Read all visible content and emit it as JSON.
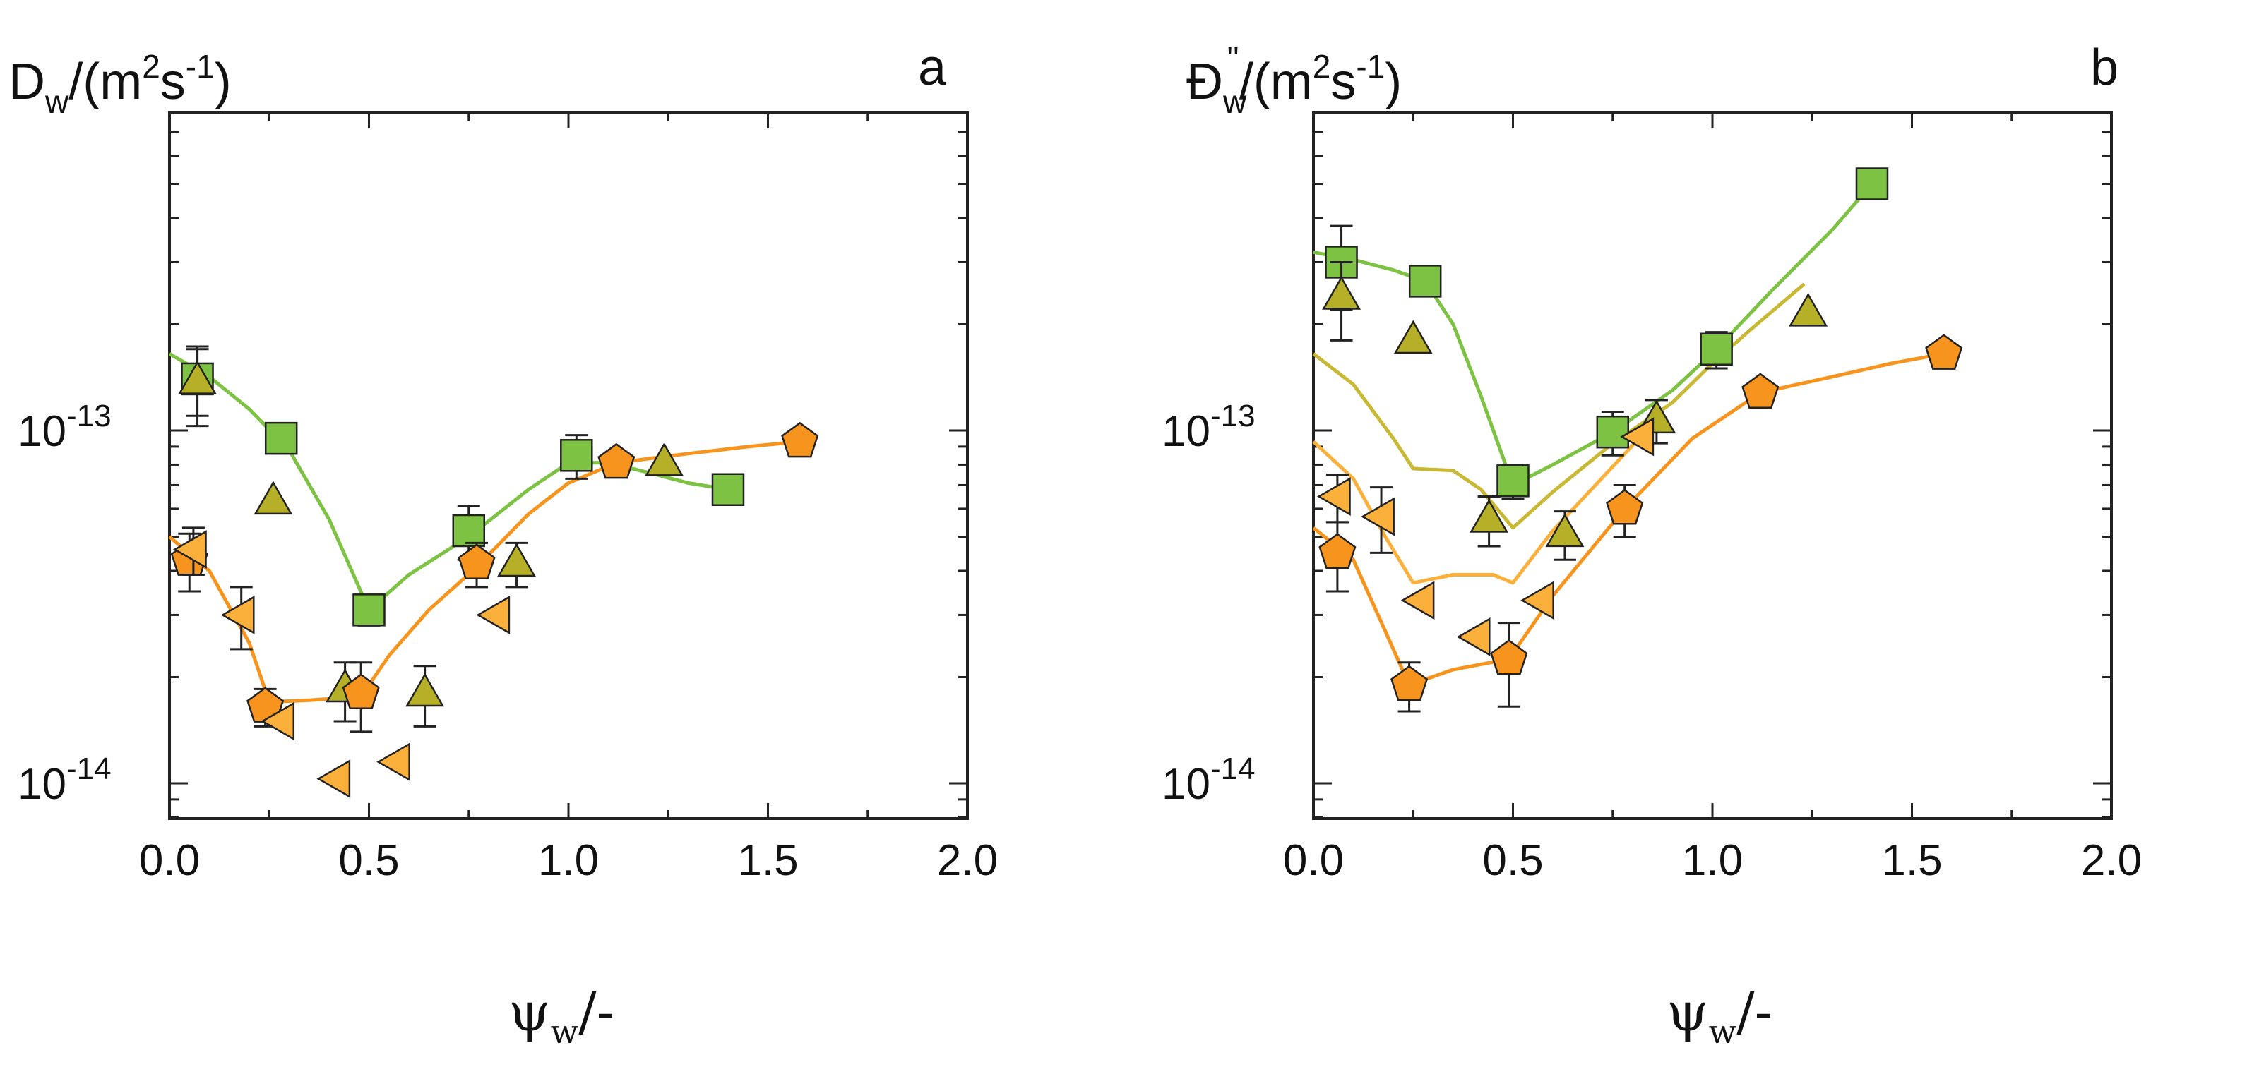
{
  "chart_data": [
    {
      "type": "scatter",
      "panel": "a",
      "title_main": "D",
      "title_sub": "w",
      "title_mid": "/(m",
      "title_sup1": "2",
      "title_mid2": "s",
      "title_sup2": "-1",
      "title_end": ")",
      "panel_label": "a",
      "xlabel_main": "ψ",
      "xlabel_sub": "w",
      "xlabel_end": "/-",
      "xlim": [
        0,
        2
      ],
      "ylim_log": [
        -14.1,
        -12.1
      ],
      "yscale": "log",
      "x_ticks": [
        "0.0",
        "0.5",
        "1.0",
        "1.5",
        "2.0"
      ],
      "y_ticks": [
        {
          "base": "10",
          "exp": "-13",
          "value": -13
        },
        {
          "base": "10",
          "exp": "-14",
          "value": -14
        }
      ],
      "series": [
        {
          "name": "square",
          "marker": "square",
          "color": "#7dc242",
          "x": [
            0.07,
            0.28,
            0.5,
            0.75,
            1.02,
            1.4
          ],
          "y": [
            1.4e-13,
            9.5e-14,
            3.1e-14,
            5.2e-14,
            8.5e-14,
            6.8e-14
          ],
          "err": [
            3e-14,
            0,
            3e-15,
            9e-15,
            1.2e-14,
            0
          ]
        },
        {
          "name": "triangle-up",
          "marker": "triangle-up",
          "color": "#b5b027",
          "x": [
            0.07,
            0.26,
            0.44,
            0.64,
            0.87,
            1.24
          ],
          "y": [
            1.38e-13,
            6.3e-14,
            1.85e-14,
            1.8e-14,
            4.2e-14,
            8.1e-14
          ],
          "err": [
            3.5e-14,
            0,
            3.5e-15,
            3.5e-15,
            6e-15,
            0
          ]
        },
        {
          "name": "pentagon",
          "marker": "pentagon",
          "color": "#f7941d",
          "x": [
            0.05,
            0.24,
            0.48,
            0.77,
            1.12,
            1.58
          ],
          "y": [
            4.3e-14,
            1.65e-14,
            1.8e-14,
            4.2e-14,
            8.1e-14,
            9.3e-14
          ],
          "err": [
            8e-15,
            2e-15,
            4e-15,
            6e-15,
            0,
            0
          ]
        },
        {
          "name": "triangle-left",
          "marker": "triangle-left",
          "color": "#fbb03b",
          "x": [
            0.06,
            0.18,
            0.28,
            0.42,
            0.57,
            0.82
          ],
          "y": [
            4.6e-14,
            3e-14,
            1.5e-14,
            1.03e-14,
            1.15e-14,
            3e-14
          ],
          "err": [
            7e-15,
            6e-15,
            0,
            0,
            0,
            0
          ]
        }
      ],
      "lines": [
        {
          "name": "green-fit",
          "color": "#7dc242",
          "x": [
            0.0,
            0.1,
            0.2,
            0.3,
            0.4,
            0.5,
            0.6,
            0.75,
            0.9,
            1.0,
            1.1,
            1.2,
            1.3,
            1.4
          ],
          "y": [
            1.65e-13,
            1.42e-13,
            1.15e-13,
            8.8e-14,
            5.6e-14,
            3.1e-14,
            3.9e-14,
            5e-14,
            6.8e-14,
            8.1e-14,
            8.1e-14,
            7.6e-14,
            7.1e-14,
            6.8e-14
          ]
        },
        {
          "name": "orange-fit",
          "color": "#f7941d",
          "x": [
            0.0,
            0.1,
            0.2,
            0.25,
            0.35,
            0.48,
            0.55,
            0.65,
            0.77,
            0.9,
            1.0,
            1.12,
            1.3,
            1.45,
            1.58
          ],
          "y": [
            5e-14,
            4e-14,
            2.5e-14,
            1.7e-14,
            1.72e-14,
            1.76e-14,
            2.3e-14,
            3.1e-14,
            4.1e-14,
            5.8e-14,
            7.1e-14,
            8.1e-14,
            8.6e-14,
            9e-14,
            9.3e-14
          ]
        }
      ]
    },
    {
      "type": "scatter",
      "panel": "b",
      "title_main": "Đ",
      "title_sub": "w",
      "title_sup0": "''",
      "title_mid": "/(m",
      "title_sup1": "2",
      "title_mid2": "s",
      "title_sup2": "-1",
      "title_end": ")",
      "panel_label": "b",
      "xlabel_main": "ψ",
      "xlabel_sub": "w",
      "xlabel_end": "/-",
      "xlim": [
        0,
        2
      ],
      "ylim_log": [
        -14.1,
        -12.1
      ],
      "yscale": "log",
      "x_ticks": [
        "0.0",
        "0.5",
        "1.0",
        "1.5",
        "2.0"
      ],
      "y_ticks": [
        {
          "base": "10",
          "exp": "-13",
          "value": -13
        },
        {
          "base": "10",
          "exp": "-14",
          "value": -14
        }
      ],
      "series": [
        {
          "name": "square",
          "marker": "square",
          "color": "#7dc242",
          "x": [
            0.07,
            0.28,
            0.5,
            0.75,
            1.01,
            1.4
          ],
          "y": [
            3e-13,
            2.65e-13,
            7.2e-14,
            9.9e-14,
            1.7e-13,
            5e-13
          ],
          "err": [
            8e-14,
            0,
            8e-15,
            1.4e-14,
            2e-14,
            0
          ]
        },
        {
          "name": "triangle-up",
          "marker": "triangle-up",
          "color": "#b5b027",
          "x": [
            0.07,
            0.25,
            0.44,
            0.63,
            0.86,
            1.24
          ],
          "y": [
            2.4e-13,
            1.8e-13,
            5.6e-14,
            5.1e-14,
            1.07e-13,
            2.15e-13
          ],
          "err": [
            6e-14,
            0,
            9e-15,
            8e-15,
            1.5e-14,
            0
          ]
        },
        {
          "name": "pentagon",
          "marker": "pentagon",
          "color": "#f7941d",
          "x": [
            0.06,
            0.24,
            0.49,
            0.78,
            1.12,
            1.58
          ],
          "y": [
            4.5e-14,
            1.9e-14,
            2.25e-14,
            6e-14,
            1.28e-13,
            1.65e-13
          ],
          "err": [
            1e-14,
            3e-15,
            6e-15,
            1e-14,
            0,
            0
          ]
        },
        {
          "name": "triangle-left",
          "marker": "triangle-left",
          "color": "#fbb03b",
          "x": [
            0.06,
            0.17,
            0.27,
            0.41,
            0.57,
            0.82
          ],
          "y": [
            6.5e-14,
            5.7e-14,
            3.3e-14,
            2.6e-14,
            3.3e-14,
            9.6e-14
          ],
          "err": [
            1e-14,
            1.2e-14,
            0,
            0,
            0,
            0
          ]
        }
      ],
      "lines": [
        {
          "name": "green-fit",
          "color": "#7dc242",
          "x": [
            0.0,
            0.1,
            0.2,
            0.28,
            0.35,
            0.42,
            0.5,
            0.6,
            0.75,
            0.9,
            1.01,
            1.15,
            1.3,
            1.4
          ],
          "y": [
            3.2e-13,
            3.05e-13,
            2.85e-13,
            2.65e-13,
            2e-13,
            1.25e-13,
            7e-14,
            8e-14,
            9.9e-14,
            1.3e-13,
            1.7e-13,
            2.5e-13,
            3.7e-13,
            5e-13
          ]
        },
        {
          "name": "olive-fit",
          "color": "#c9b833",
          "x": [
            0.0,
            0.1,
            0.2,
            0.25,
            0.35,
            0.42,
            0.5,
            0.6,
            0.75,
            0.9,
            1.0,
            1.1,
            1.23
          ],
          "y": [
            1.65e-13,
            1.35e-13,
            9.5e-14,
            7.8e-14,
            7.7e-14,
            6.8e-14,
            5.3e-14,
            6.7e-14,
            9.2e-14,
            1.2e-13,
            1.55e-13,
            1.95e-13,
            2.6e-13
          ]
        },
        {
          "name": "light-orange-fit",
          "color": "#fbb03b",
          "x": [
            0.0,
            0.1,
            0.18,
            0.25,
            0.35,
            0.45,
            0.5,
            0.6,
            0.75,
            0.82
          ],
          "y": [
            9.3e-14,
            7.3e-14,
            5e-14,
            3.7e-14,
            3.9e-14,
            3.9e-14,
            3.7e-14,
            5.2e-14,
            7.9e-14,
            9.6e-14
          ]
        },
        {
          "name": "orange-fit",
          "color": "#f7941d",
          "x": [
            0.0,
            0.1,
            0.18,
            0.24,
            0.35,
            0.49,
            0.6,
            0.78,
            0.95,
            1.12,
            1.3,
            1.45,
            1.58
          ],
          "y": [
            5.3e-14,
            4.3e-14,
            2.7e-14,
            1.9e-14,
            2.1e-14,
            2.25e-14,
            3.4e-14,
            6e-14,
            9.5e-14,
            1.28e-13,
            1.42e-13,
            1.55e-13,
            1.65e-13
          ]
        }
      ]
    }
  ]
}
